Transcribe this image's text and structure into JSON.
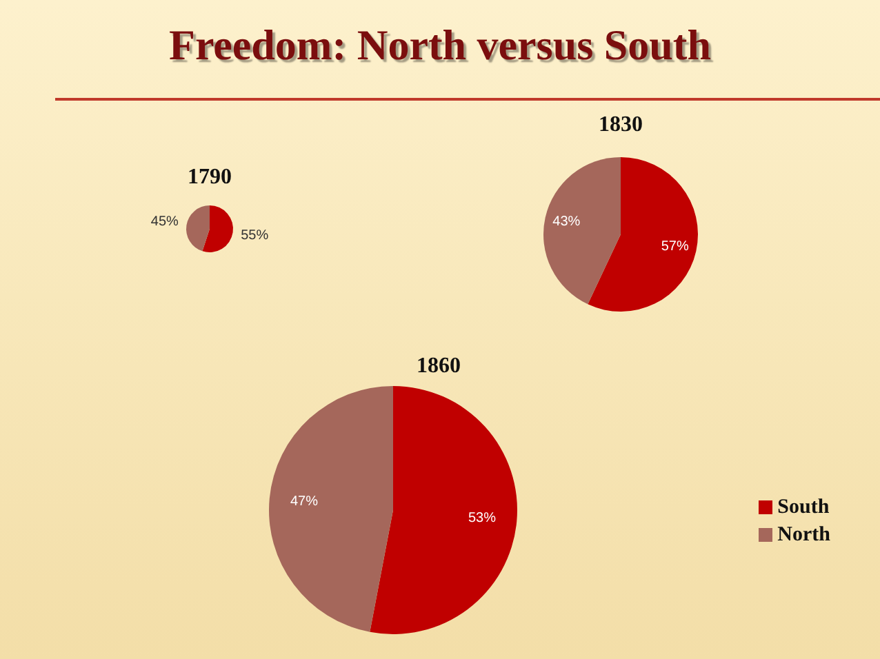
{
  "chart_data": [
    {
      "type": "other",
      "title": "Freedom: North versus South"
    },
    {
      "type": "pie",
      "title": "1790",
      "categories": [
        null,
        null
      ],
      "values": [
        55,
        45
      ],
      "colors": [
        "#c00000",
        "#a5675b"
      ],
      "value_labels": [
        "55%",
        "45%"
      ]
    },
    {
      "type": "pie",
      "title": "1830",
      "categories": [
        null,
        null
      ],
      "values": [
        57,
        43
      ],
      "colors": [
        "#c00000",
        "#a5675b"
      ],
      "value_labels": [
        "57%",
        "43%"
      ]
    },
    {
      "type": "pie",
      "title": "1860",
      "categories": [
        "South",
        "North"
      ],
      "values": [
        53,
        47
      ],
      "colors": [
        "#c00000",
        "#a5675b"
      ],
      "value_labels": [
        "53%",
        "47%"
      ],
      "legend": "right"
    }
  ]
}
